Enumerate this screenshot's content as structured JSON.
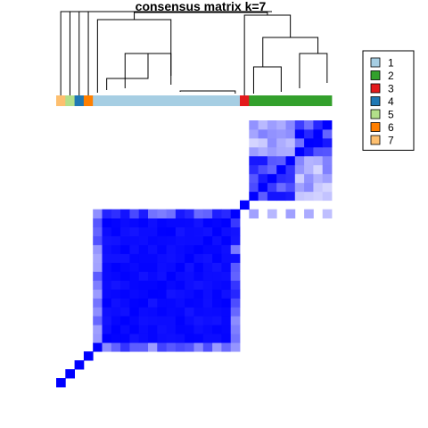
{
  "chart_data": {
    "type": "heatmap",
    "title": "consensus matrix k=7",
    "value_range": [
      0,
      1
    ],
    "color_low": "#FFFFFF",
    "color_high": "#0000FF",
    "legend_placement": "right",
    "legend": [
      {
        "label": "1",
        "color": "#A6CEE3"
      },
      {
        "label": "2",
        "color": "#33A02C"
      },
      {
        "label": "3",
        "color": "#E31A1C"
      },
      {
        "label": "4",
        "color": "#1F78B4"
      },
      {
        "label": "5",
        "color": "#B2DF8A"
      },
      {
        "label": "6",
        "color": "#FF7F00"
      },
      {
        "label": "7",
        "color": "#FDBF6F"
      }
    ],
    "sample_count": 30,
    "sample_clusters": [
      7,
      5,
      4,
      6,
      1,
      1,
      1,
      1,
      1,
      1,
      1,
      1,
      1,
      1,
      1,
      1,
      1,
      1,
      1,
      1,
      3,
      2,
      2,
      2,
      2,
      2,
      2,
      2,
      2,
      2
    ],
    "cluster_blocks": [
      {
        "cluster": "7",
        "samples": [
          0,
          0
        ],
        "within": 1.0
      },
      {
        "cluster": "5",
        "samples": [
          1,
          1
        ],
        "within": 1.0
      },
      {
        "cluster": "4",
        "samples": [
          2,
          2
        ],
        "within": 1.0
      },
      {
        "cluster": "6",
        "samples": [
          3,
          3
        ],
        "within": 1.0
      },
      {
        "cluster": "1",
        "samples": [
          4,
          19
        ],
        "within": 0.98
      },
      {
        "cluster": "3",
        "samples": [
          20,
          20
        ],
        "within": 1.0
      },
      {
        "cluster": "2",
        "samples": [
          21,
          29
        ],
        "within": 0.75
      }
    ]
  }
}
